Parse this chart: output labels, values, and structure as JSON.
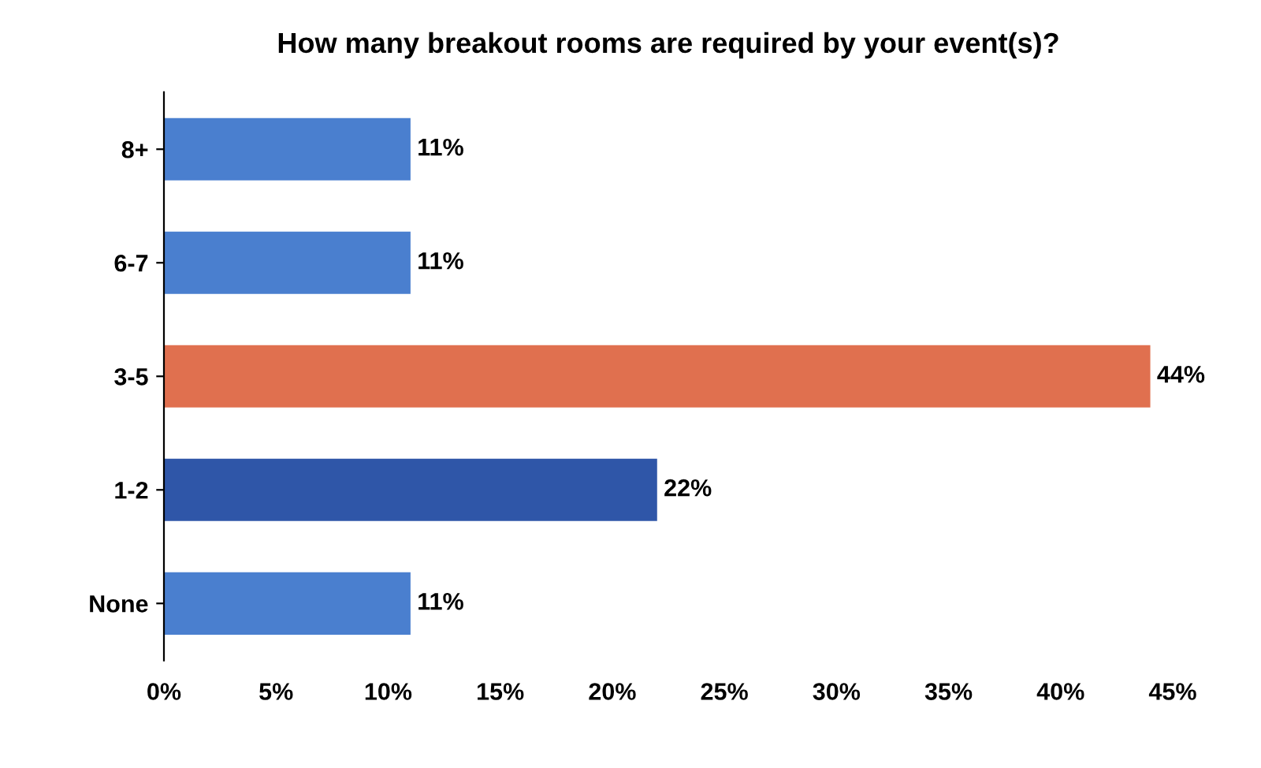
{
  "chart_data": {
    "type": "bar",
    "orientation": "horizontal",
    "title": "How many breakout rooms are required by your event(s)?",
    "categories": [
      "8+",
      "6-7",
      "3-5",
      "1-2",
      "None"
    ],
    "values": [
      11,
      11,
      44,
      22,
      11
    ],
    "colors": [
      "#4a7fcf",
      "#4a7fcf",
      "#e0704f",
      "#2f56a8",
      "#4a7fcf"
    ],
    "value_labels": [
      "11%",
      "11%",
      "44%",
      "22%",
      "11%"
    ],
    "xlim": [
      0,
      45
    ],
    "xticks": [
      {
        "value": 0,
        "label": "0%"
      },
      {
        "value": 5,
        "label": "5%"
      },
      {
        "value": 10,
        "label": "10%"
      },
      {
        "value": 15,
        "label": "15%"
      },
      {
        "value": 20,
        "label": "20%"
      },
      {
        "value": 25,
        "label": "25%"
      },
      {
        "value": 30,
        "label": "30%"
      },
      {
        "value": 35,
        "label": "35%"
      },
      {
        "value": 40,
        "label": "40%"
      },
      {
        "value": 45,
        "label": "45%"
      }
    ],
    "grid": false,
    "legend": false
  }
}
